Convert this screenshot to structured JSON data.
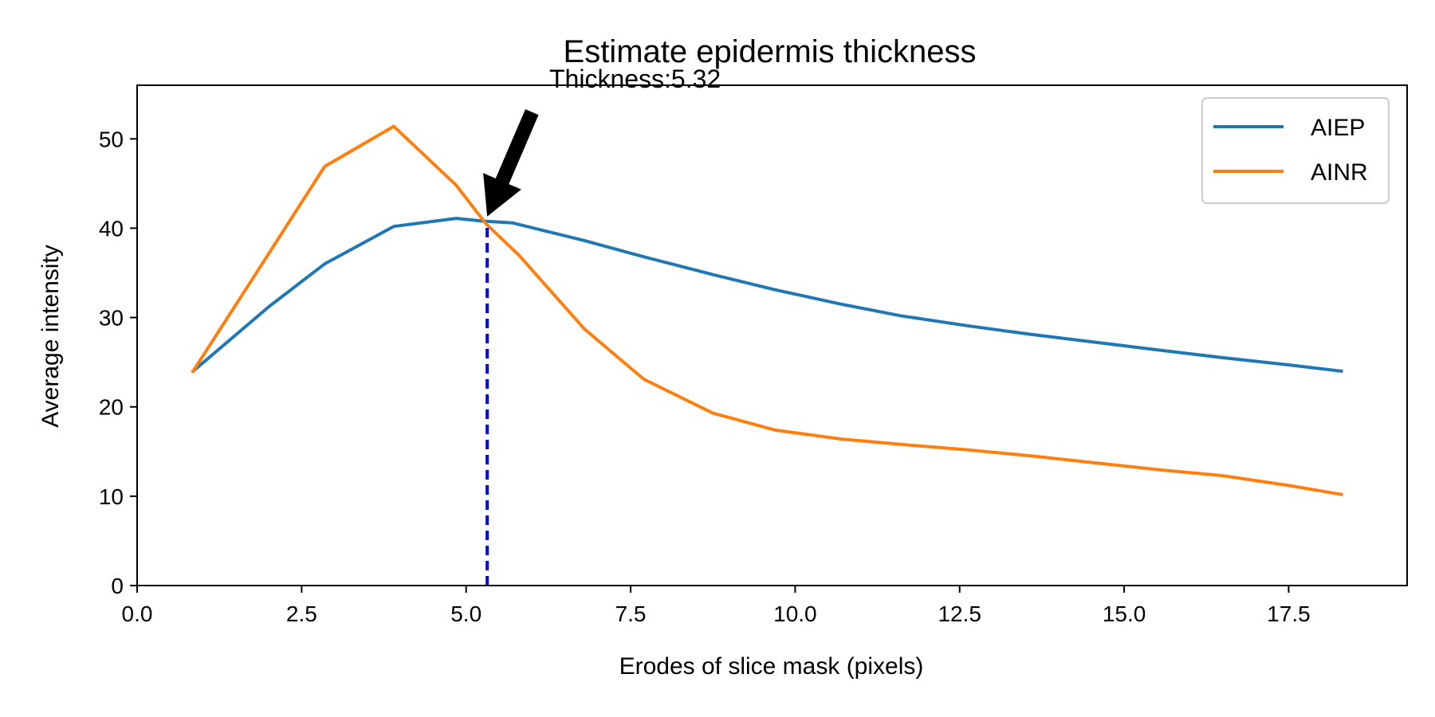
{
  "chart_data": {
    "type": "line",
    "title": "Estimate epidermis thickness",
    "xlabel": "Erodes of slice mask (pixels)",
    "ylabel": "Average intensity",
    "xlim": [
      0,
      19.3
    ],
    "ylim": [
      0,
      56
    ],
    "xticks": [
      0,
      2.5,
      5,
      7.5,
      10,
      12.5,
      15,
      17.5
    ],
    "xtick_labels": [
      "0.0",
      "2.5",
      "5.0",
      "7.5",
      "10.0",
      "12.5",
      "15.0",
      "17.5"
    ],
    "yticks": [
      0,
      10,
      20,
      30,
      40,
      50
    ],
    "ytick_labels": [
      "0",
      "10",
      "20",
      "30",
      "40",
      "50"
    ],
    "grid": false,
    "legend_position": "top-right",
    "series": [
      {
        "name": "AIEP",
        "color": "#1f77b4",
        "x": [
          0.85,
          2.0,
          2.85,
          3.9,
          4.85,
          5.25,
          5.7,
          6.8,
          7.7,
          8.75,
          9.7,
          10.7,
          11.6,
          12.6,
          13.6,
          14.6,
          15.6,
          16.5,
          17.5,
          18.3
        ],
        "y": [
          24.0,
          31.2,
          36.0,
          40.2,
          41.1,
          40.8,
          40.6,
          38.6,
          36.8,
          34.8,
          33.1,
          31.5,
          30.2,
          29.1,
          28.1,
          27.2,
          26.3,
          25.5,
          24.7,
          24.0
        ]
      },
      {
        "name": "AINR",
        "color": "#ff7f0e",
        "x": [
          0.85,
          1.9,
          2.85,
          3.9,
          4.85,
          5.3,
          5.8,
          6.8,
          7.7,
          8.75,
          9.7,
          10.7,
          11.6,
          12.6,
          13.6,
          14.6,
          15.6,
          16.5,
          17.5,
          18.3
        ],
        "y": [
          24.0,
          36.0,
          46.9,
          51.4,
          44.8,
          40.5,
          37.0,
          28.7,
          23.1,
          19.3,
          17.4,
          16.4,
          15.8,
          15.2,
          14.5,
          13.7,
          12.9,
          12.3,
          11.2,
          10.2
        ]
      }
    ],
    "threshold_line": {
      "x": 5.32,
      "color": "#0000ff",
      "style": "dashed"
    },
    "annotation": {
      "text": "Thickness:5.32",
      "point": [
        5.32,
        40.6
      ],
      "text_position": [
        6.3,
        54.0
      ]
    }
  }
}
